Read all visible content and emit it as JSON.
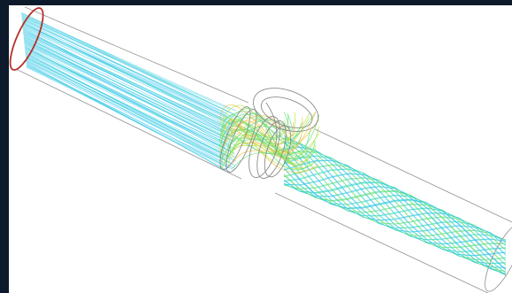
{
  "figure": {
    "background_color": "#ffffff",
    "frame_color": "#0d1a2b",
    "outline_color": "#9a9a9a",
    "inlet_ring_color": "#b5302a",
    "streamline_palette": [
      "#2fc4ea",
      "#39d6c9",
      "#62e07a",
      "#b9e34a",
      "#f2c23a",
      "#ef6a2d",
      "#d94b2b"
    ]
  }
}
